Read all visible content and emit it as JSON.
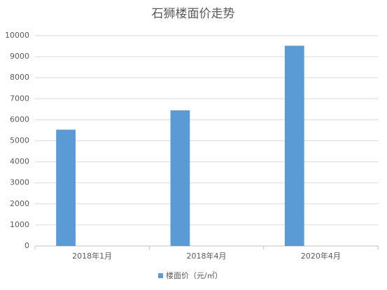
{
  "chart_data": {
    "type": "bar",
    "title": "石狮楼面价走势",
    "categories": [
      "2018年1月",
      "2018年4月",
      "2020年4月"
    ],
    "series": [
      {
        "name": "楼面价（元/㎡）",
        "color": "#5b9bd5",
        "values": [
          5530,
          6450,
          9520
        ]
      }
    ],
    "ylim": [
      0,
      10000
    ],
    "yticks": [
      0,
      1000,
      2000,
      3000,
      4000,
      5000,
      6000,
      7000,
      8000,
      9000,
      10000
    ],
    "grid": true,
    "legend": "bottom"
  }
}
